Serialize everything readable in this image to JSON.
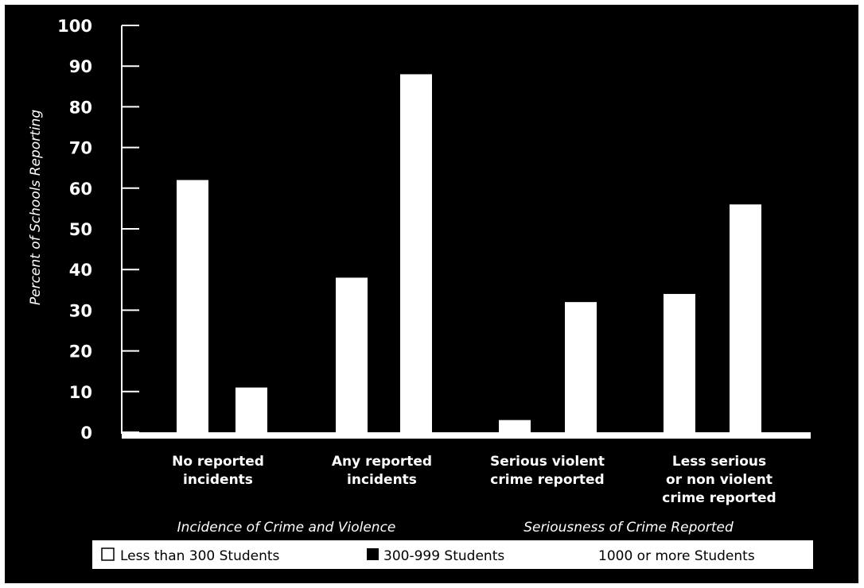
{
  "chart_data": {
    "type": "bar",
    "title": "",
    "ylabel": "Percent of Schools Reporting",
    "ylim": [
      0,
      100
    ],
    "yticks": [
      0,
      10,
      20,
      30,
      40,
      50,
      60,
      70,
      80,
      90,
      100
    ],
    "categories": [
      [
        "No reported",
        "incidents"
      ],
      [
        "Any reported",
        "incidents"
      ],
      [
        "Serious violent",
        "crime reported"
      ],
      [
        "Less serious",
        "or non violent",
        "crime reported"
      ]
    ],
    "groups": [
      {
        "label": "Incidence of Crime and Violence",
        "categories": [
          0,
          1
        ]
      },
      {
        "label": "Seriousness of Crime Reported",
        "categories": [
          2,
          3
        ]
      }
    ],
    "series": [
      {
        "name": "Less than 300 Students",
        "values": [
          null,
          null,
          null,
          null
        ]
      },
      {
        "name": "300-999 Students",
        "values": [
          62,
          38,
          3,
          34
        ]
      },
      {
        "name": "1000 or more Students",
        "values": [
          11,
          88,
          32,
          56
        ]
      }
    ],
    "legend": {
      "placement": "bottom",
      "items": [
        {
          "label": "Less than 300 Students",
          "symbol": "□"
        },
        {
          "label": "300-999 Students",
          "symbol": "■"
        },
        {
          "label": "1000 or more Students",
          "symbol": ""
        }
      ]
    },
    "grid": false,
    "colors": {
      "background": "#000000",
      "bar": "#ffffff",
      "axis": "#ffffff",
      "legend_bg": "#ffffff"
    }
  }
}
